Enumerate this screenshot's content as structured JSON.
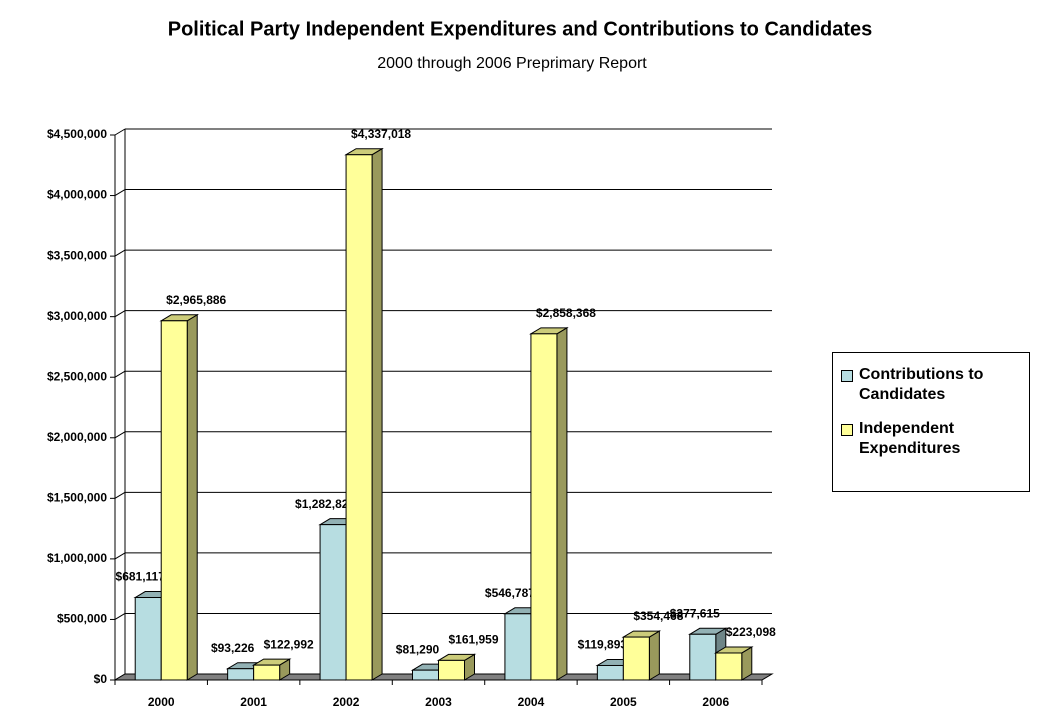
{
  "chart_data": {
    "type": "bar3d",
    "title": "Political Party Independent Expenditures and Contributions to Candidates",
    "subtitle": "2000 through 2006 Preprimary Report",
    "categories": [
      "2000",
      "2001",
      "2002",
      "2003",
      "2004",
      "2005",
      "2006"
    ],
    "series": [
      {
        "name": "Contributions to Candidates",
        "color": "#b7dde1",
        "values": [
          681117,
          93226,
          1282829,
          81290,
          546787,
          119893,
          377615
        ],
        "value_labels": [
          "$681,117",
          "$93,226",
          "$1,282,829",
          "$81,290",
          "$546,787",
          "$119,893",
          "$377,615"
        ]
      },
      {
        "name": "Independent Expenditures",
        "color": "#ffff99",
        "values": [
          2965886,
          122992,
          4337018,
          161959,
          2858368,
          354468,
          223098
        ],
        "value_labels": [
          "$2,965,886",
          "$122,992",
          "$4,337,018",
          "$161,959",
          "$2,858,368",
          "$354,468",
          "$223,098"
        ]
      }
    ],
    "ylim": [
      0,
      4500000
    ],
    "yticks": [
      {
        "value": 0,
        "label": "$0"
      },
      {
        "value": 500000,
        "label": "$500,000"
      },
      {
        "value": 1000000,
        "label": "$1,000,000"
      },
      {
        "value": 1500000,
        "label": "$1,500,000"
      },
      {
        "value": 2000000,
        "label": "$2,000,000"
      },
      {
        "value": 2500000,
        "label": "$2,500,000"
      },
      {
        "value": 3000000,
        "label": "$3,000,000"
      },
      {
        "value": 3500000,
        "label": "$3,500,000"
      },
      {
        "value": 4000000,
        "label": "$4,000,000"
      },
      {
        "value": 4500000,
        "label": "$4,500,000"
      }
    ],
    "grid": true,
    "legend": "right"
  }
}
